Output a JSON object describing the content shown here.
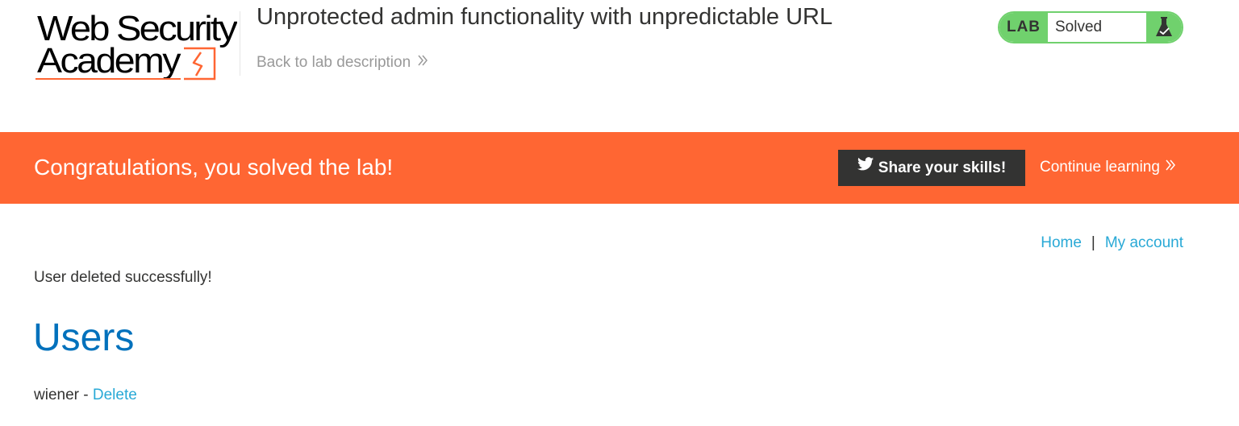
{
  "header": {
    "logo_line1": "Web Security",
    "logo_line2": "Academy",
    "lab_title": "Unprotected admin functionality with unpredictable URL",
    "back_link": "Back to lab description",
    "lab_badge": {
      "label": "LAB",
      "status": "Solved",
      "icon": "flask-icon"
    }
  },
  "banner": {
    "message": "Congratulations, you solved the lab!",
    "share_button": "Share your skills!",
    "share_icon": "twitter-icon",
    "continue_link": "Continue learning"
  },
  "nav": {
    "home": "Home",
    "separator": "|",
    "my_account": "My account"
  },
  "main": {
    "status_message": "User deleted successfully!",
    "heading": "Users",
    "users": [
      {
        "name": "wiener",
        "separator": " - ",
        "action": "Delete"
      }
    ]
  },
  "colors": {
    "brand_orange": "#ff6633",
    "lab_green": "#70d16d",
    "heading_blue": "#0071bc",
    "link_blue": "#29a9d6",
    "dark": "#333332"
  }
}
